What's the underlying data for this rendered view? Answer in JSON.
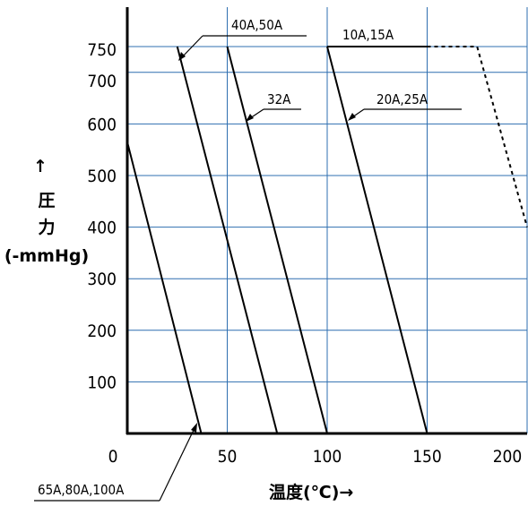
{
  "chart_data": {
    "type": "line",
    "xlabel": "温度(℃)→",
    "ylabel_arrow": "↑",
    "ylabel_line1": "圧",
    "ylabel_line2": "力",
    "ylabel_unit": "(-mmHg)",
    "xlim": [
      0,
      200
    ],
    "ylim": [
      0,
      750
    ],
    "x_ticks": [
      0,
      50,
      100,
      150,
      200
    ],
    "y_ticks": [
      100,
      200,
      300,
      400,
      500,
      600,
      700,
      750
    ],
    "grid": true,
    "series": [
      {
        "name": "65A,80A,100A",
        "points": [
          [
            0,
            565
          ],
          [
            37,
            0
          ]
        ]
      },
      {
        "name": "40A,50A",
        "points": [
          [
            25,
            750
          ],
          [
            75,
            0
          ]
        ]
      },
      {
        "name": "32A",
        "points": [
          [
            50,
            750
          ],
          [
            100,
            0
          ]
        ]
      },
      {
        "name": "20A,25A",
        "points": [
          [
            100,
            750
          ],
          [
            150,
            0
          ]
        ]
      },
      {
        "name": "10A,15A",
        "points": [
          [
            100,
            750
          ],
          [
            150,
            750
          ]
        ]
      }
    ],
    "extension": {
      "points": [
        [
          150,
          750
        ],
        [
          175,
          750
        ],
        [
          200,
          400
        ]
      ],
      "style": "dotted"
    },
    "labels": {
      "s40": "40A,50A",
      "s10": "10A,15A",
      "s32": "32A",
      "s20": "20A,25A",
      "s65": "65A,80A,100A"
    }
  }
}
